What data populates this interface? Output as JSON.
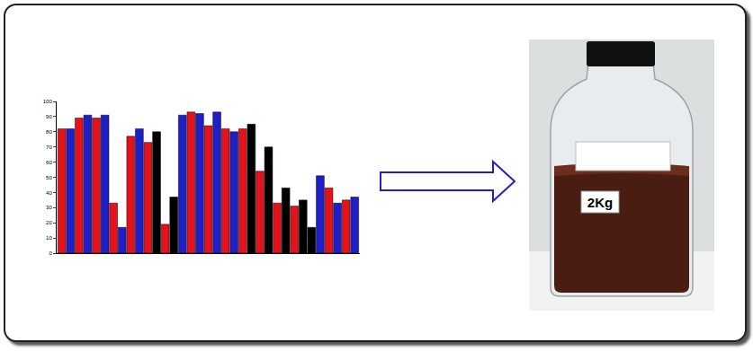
{
  "chart_data": {
    "type": "bar",
    "categories": [
      null,
      null,
      null,
      null,
      null,
      null,
      null,
      null,
      null,
      null,
      null,
      null,
      null,
      null,
      null,
      null,
      null,
      null,
      null,
      null,
      null,
      null,
      null,
      null,
      null,
      null,
      null,
      null,
      null,
      null,
      null,
      null,
      null,
      null,
      null
    ],
    "values": [
      82,
      82,
      89,
      91,
      89,
      91,
      33,
      17,
      77,
      82,
      73,
      80,
      19,
      37,
      91,
      93,
      92,
      84,
      93,
      82,
      80,
      82,
      85,
      54,
      70,
      33,
      43,
      31,
      35,
      17,
      51,
      43,
      33,
      35,
      37
    ],
    "colors": [
      "#e3121b",
      "#1f1fc8",
      "#e3121b",
      "#1f1fc8",
      "#e3121b",
      "#1f1fc8",
      "#e3121b",
      "#1f1fc8",
      "#e3121b",
      "#1f1fc8",
      "#e3121b",
      "#000000",
      "#e3121b",
      "#000000",
      "#1f1fc8",
      "#e3121b",
      "#1f1fc8",
      "#e3121b",
      "#1f1fc8",
      "#e3121b",
      "#1f1fc8",
      "#e3121b",
      "#000000",
      "#e3121b",
      "#000000",
      "#e3121b",
      "#000000",
      "#e3121b",
      "#000000",
      "#000000",
      "#1f1fc8",
      "#e3121b",
      "#1f1fc8",
      "#e3121b",
      "#1f1fc8"
    ],
    "ylim": [
      0,
      100
    ],
    "yticks": [
      0,
      10,
      20,
      30,
      40,
      50,
      60,
      70,
      80,
      90,
      100
    ],
    "grid": false,
    "tick_labels": "y"
  },
  "photo": {
    "label": "2Kg"
  }
}
